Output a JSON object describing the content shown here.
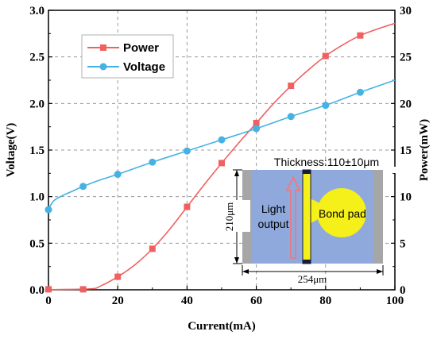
{
  "chart_data": {
    "type": "line",
    "xlabel": "Current(mA)",
    "ylabel_left": "Voltage(V)",
    "ylabel_right": "Power(mW)",
    "xlim": [
      0,
      100
    ],
    "ylim_left": [
      0,
      3.0
    ],
    "ylim_right": [
      0,
      30
    ],
    "x_ticks": [
      "0",
      "20",
      "40",
      "60",
      "80",
      "100"
    ],
    "y_left_ticks": [
      "0.0",
      "0.5",
      "1.0",
      "1.5",
      "2.0",
      "2.5",
      "3.0"
    ],
    "y_right_ticks": [
      "0",
      "5",
      "10",
      "15",
      "20",
      "25",
      "30"
    ],
    "grid": true,
    "legend_position": "top-left",
    "series": [
      {
        "name": "Power",
        "axis": "right",
        "color": "#f06060",
        "marker": "square",
        "markers": [
          [
            0,
            0.05
          ],
          [
            10,
            0.05
          ],
          [
            20,
            1.4
          ],
          [
            30,
            4.4
          ],
          [
            40,
            8.9
          ],
          [
            50,
            13.6
          ],
          [
            60,
            17.9
          ],
          [
            70,
            21.9
          ],
          [
            80,
            25.1
          ],
          [
            90,
            27.3
          ]
        ],
        "curve": [
          [
            0,
            0.02
          ],
          [
            12,
            0.1
          ],
          [
            15,
            0.4
          ],
          [
            20,
            1.4
          ],
          [
            25,
            2.7
          ],
          [
            30,
            4.4
          ],
          [
            35,
            6.5
          ],
          [
            40,
            8.9
          ],
          [
            45,
            11.3
          ],
          [
            50,
            13.6
          ],
          [
            55,
            15.8
          ],
          [
            60,
            17.9
          ],
          [
            65,
            20.0
          ],
          [
            70,
            21.9
          ],
          [
            75,
            23.6
          ],
          [
            80,
            25.1
          ],
          [
            85,
            26.3
          ],
          [
            90,
            27.3
          ],
          [
            95,
            28.0
          ],
          [
            100,
            28.6
          ]
        ]
      },
      {
        "name": "Voltage",
        "axis": "left",
        "color": "#45b2e3",
        "marker": "circle",
        "markers": [
          [
            0,
            0.86
          ],
          [
            10,
            1.11
          ],
          [
            20,
            1.24
          ],
          [
            30,
            1.37
          ],
          [
            40,
            1.49
          ],
          [
            50,
            1.61
          ],
          [
            60,
            1.73
          ],
          [
            70,
            1.86
          ],
          [
            80,
            1.98
          ],
          [
            90,
            2.12
          ]
        ],
        "curve": [
          [
            0,
            0.86
          ],
          [
            1,
            0.93
          ],
          [
            2,
            0.97
          ],
          [
            4,
            1.01
          ],
          [
            7,
            1.06
          ],
          [
            10,
            1.11
          ],
          [
            15,
            1.18
          ],
          [
            20,
            1.24
          ],
          [
            30,
            1.37
          ],
          [
            40,
            1.49
          ],
          [
            50,
            1.61
          ],
          [
            60,
            1.73
          ],
          [
            70,
            1.86
          ],
          [
            80,
            1.98
          ],
          [
            90,
            2.12
          ],
          [
            100,
            2.25
          ]
        ]
      }
    ]
  },
  "inset": {
    "thickness_label": "Thickness:110±10μm",
    "height_label": "210μm",
    "width_label": "254μm",
    "light_label_line1": "Light",
    "light_label_line2": "output",
    "bond_pad_label": "Bond pad",
    "colors": {
      "chip": "#8fa9dc",
      "side": "#a6a6a6",
      "strip": "#f5ef1a",
      "pad": "#f5ef1a",
      "arrow": "#ff7070"
    }
  }
}
